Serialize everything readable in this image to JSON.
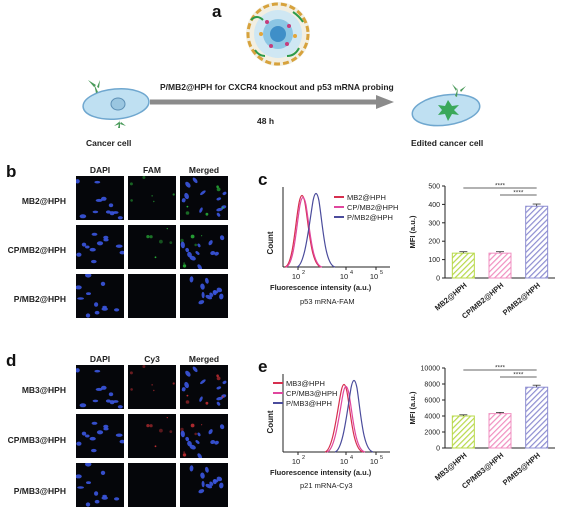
{
  "panel_a": {
    "letter": "a",
    "title": "P/MB2@HPH for CXCR4 knockout and p53 mRNA probing",
    "time": "48 h",
    "left_cell": "Cancer cell",
    "right_cell": "Edited cancer cell"
  },
  "panel_b": {
    "letter": "b",
    "columns": [
      "DAPI",
      "FAM",
      "Merged"
    ],
    "rows": [
      "MB2@HPH",
      "CP/MB2@HPH",
      "P/MB2@HPH"
    ]
  },
  "panel_c": {
    "letter": "c",
    "legend": [
      "MB2@HPH",
      "CP/MB2@HPH",
      "P/MB2@HPH"
    ],
    "ylabel": "Count",
    "xlabel": "Fluorescence intensity  (a.u.)",
    "caption": "p53 mRNA-FAM",
    "xticks": [
      "10",
      "10",
      "10"
    ],
    "xtick_exps": [
      "2",
      "4",
      "5"
    ]
  },
  "panel_d": {
    "letter": "d",
    "columns": [
      "DAPI",
      "Cy3",
      "Merged"
    ],
    "rows": [
      "MB3@HPH",
      "CP/MB3@HPH",
      "P/MB3@HPH"
    ]
  },
  "panel_e": {
    "letter": "e",
    "legend": [
      "MB3@HPH",
      "CP/MB3@HPH",
      "P/MB3@HPH"
    ],
    "ylabel": "Count",
    "xlabel": "Fluorescence intensity  (a.u.)",
    "caption": "p21 mRNA-Cy3",
    "xticks": [
      "10",
      "10",
      "10"
    ],
    "xtick_exps": [
      "2",
      "4",
      "5"
    ]
  },
  "colors": {
    "series1": "#d62f4f",
    "series2": "#e0479e",
    "series3": "#4b4c9c",
    "bar1": "#b8d94a",
    "bar2": "#f08fc0",
    "bar3": "#8d8dd1",
    "arrow": "#888888"
  },
  "chart_data": [
    {
      "type": "bar",
      "panel": "c",
      "categories": [
        "MB2@HPH",
        "CP/MB2@HPH",
        "P/MB2@HPH"
      ],
      "values": [
        135,
        135,
        390
      ],
      "errors": [
        8,
        8,
        12
      ],
      "ylabel": "MFI (a.u.)",
      "ylim": [
        0,
        500
      ],
      "yticks": [
        0,
        100,
        200,
        300,
        400,
        500
      ],
      "significance": [
        "****",
        "****"
      ]
    },
    {
      "type": "bar",
      "panel": "e",
      "categories": [
        "MB3@HPH",
        "CP/MB3@HPH",
        "P/MB3@HPH"
      ],
      "values": [
        4000,
        4300,
        7600
      ],
      "errors": [
        150,
        150,
        250
      ],
      "ylabel": "MFI (a.u.)",
      "ylim": [
        0,
        10000
      ],
      "yticks": [
        0,
        2000,
        4000,
        6000,
        8000,
        10000
      ],
      "significance": [
        "****",
        "****"
      ]
    }
  ]
}
